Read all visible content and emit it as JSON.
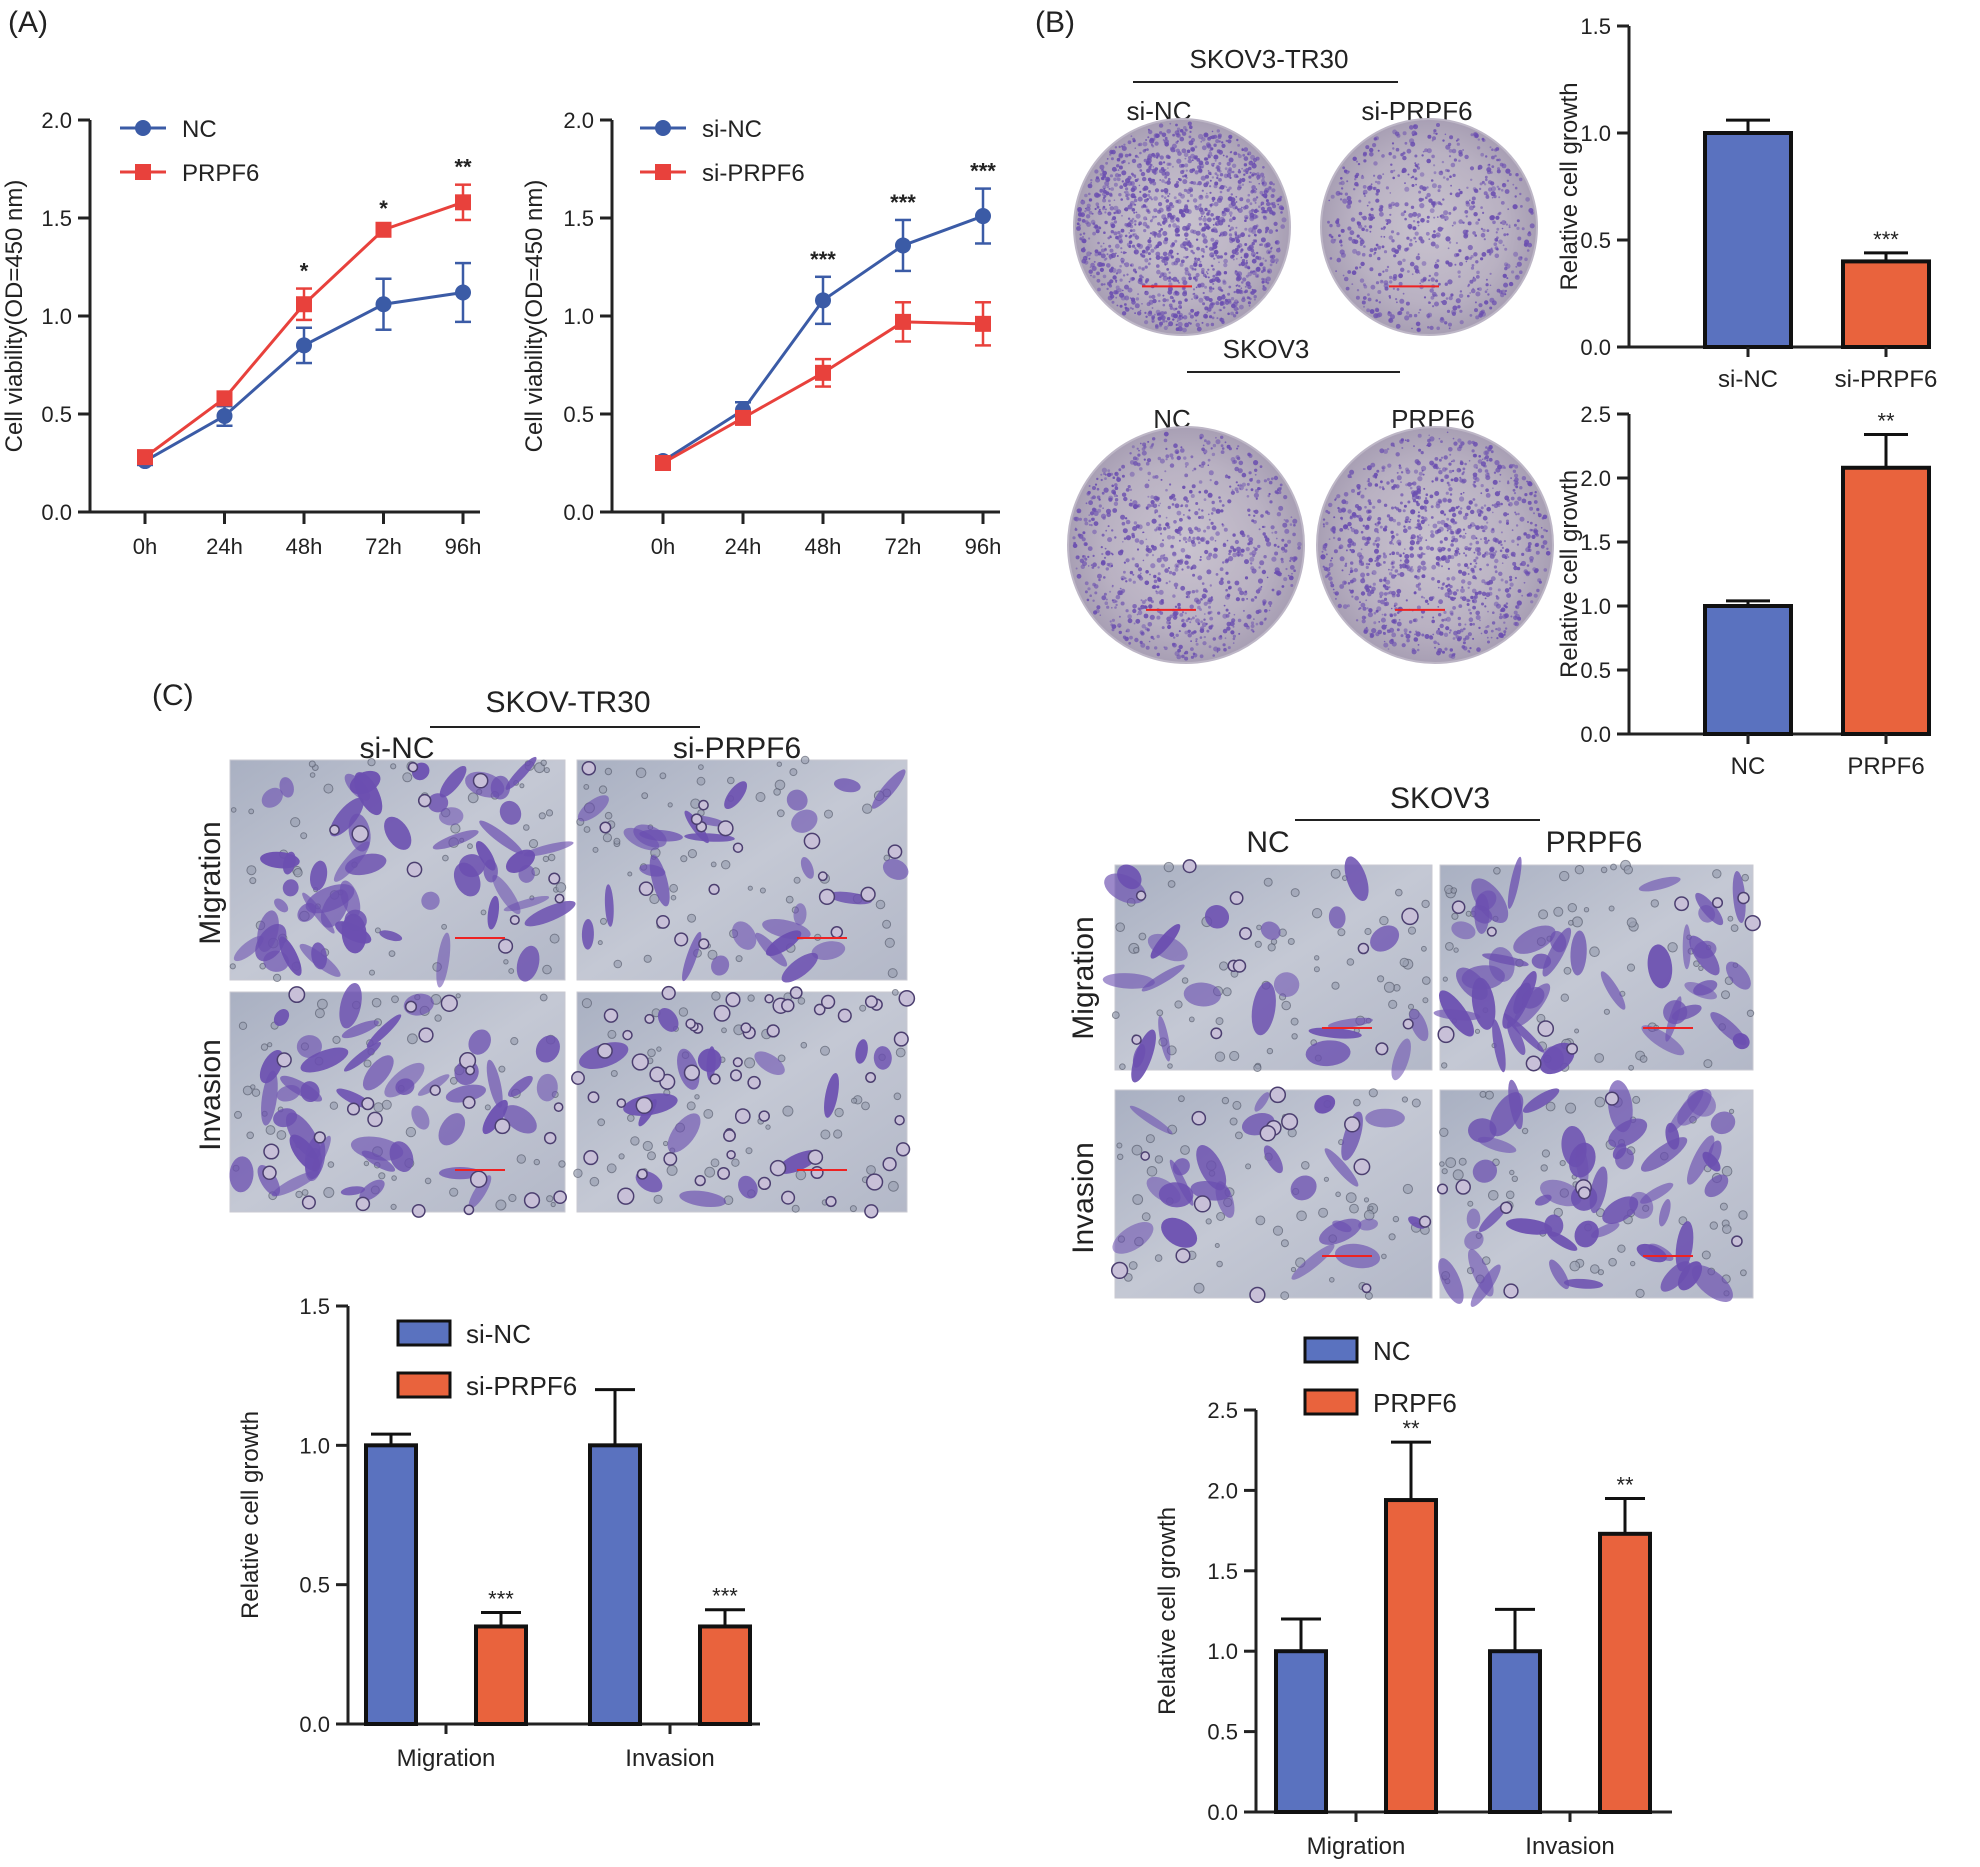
{
  "panels": {
    "A": "(A)",
    "B": "(B)",
    "C": "(C)"
  },
  "colors": {
    "blue": "#3b5ba6",
    "red": "#e8413c",
    "bar_blue": "#5a72bf",
    "bar_orange": "#e9633d",
    "stain": "#6b4fb0",
    "bg_field": "#b6bccb"
  },
  "panelB": {
    "dish_top_group": "SKOV3-TR30",
    "dish_top_labels": [
      "si-NC",
      "si-PRPF6"
    ],
    "dish_bottom_group": "SKOV3",
    "dish_bottom_labels": [
      "NC",
      "PRPF6"
    ]
  },
  "panelC": {
    "left_group": "SKOV-TR30",
    "left_cols": [
      "si-NC",
      "si-PRPF6"
    ],
    "right_group": "SKOV3",
    "right_cols": [
      "NC",
      "PRPF6"
    ],
    "rows": [
      "Migration",
      "Invasion"
    ]
  },
  "chart_data": [
    {
      "type": "line",
      "id": "A1",
      "title": "",
      "xlabel": "",
      "ylabel": "Cell viability(OD=450 nm)",
      "categories": [
        "0h",
        "24h",
        "48h",
        "72h",
        "96h"
      ],
      "ylim": [
        0,
        2.0
      ],
      "yticks": [
        "0.0",
        "0.5",
        "1.0",
        "1.5",
        "2.0"
      ],
      "series": [
        {
          "name": "NC",
          "color": "#3b5ba6",
          "marker": "circle",
          "values": [
            0.26,
            0.49,
            0.85,
            1.06,
            1.12
          ],
          "err": [
            0.02,
            0.05,
            0.09,
            0.13,
            0.15
          ]
        },
        {
          "name": "PRPF6",
          "color": "#e8413c",
          "marker": "square",
          "values": [
            0.28,
            0.58,
            1.06,
            1.44,
            1.58
          ],
          "err": [
            0.02,
            0.03,
            0.08,
            0.02,
            0.09
          ]
        }
      ],
      "significance": [
        "",
        "",
        "*",
        "*",
        "**"
      ]
    },
    {
      "type": "line",
      "id": "A2",
      "title": "",
      "xlabel": "",
      "ylabel": "Cell viability(OD=450 nm)",
      "categories": [
        "0h",
        "24h",
        "48h",
        "72h",
        "96h"
      ],
      "ylim": [
        0,
        2.0
      ],
      "yticks": [
        "0.0",
        "0.5",
        "1.0",
        "1.5",
        "2.0"
      ],
      "series": [
        {
          "name": "si-NC",
          "color": "#3b5ba6",
          "marker": "circle",
          "values": [
            0.26,
            0.52,
            1.08,
            1.36,
            1.51
          ],
          "err": [
            0.02,
            0.04,
            0.12,
            0.13,
            0.14
          ]
        },
        {
          "name": "si-PRPF6",
          "color": "#e8413c",
          "marker": "square",
          "values": [
            0.25,
            0.48,
            0.71,
            0.97,
            0.96
          ],
          "err": [
            0.02,
            0.03,
            0.07,
            0.1,
            0.11
          ]
        }
      ],
      "significance": [
        "",
        "",
        "***",
        "***",
        "***"
      ]
    },
    {
      "type": "bar",
      "id": "B1",
      "ylabel": "Relative cell growth",
      "categories": [
        "si-NC",
        "si-PRPF6"
      ],
      "ylim": [
        0,
        1.5
      ],
      "yticks": [
        "0.0",
        "0.5",
        "1.0",
        "1.5"
      ],
      "values": [
        1.0,
        0.4
      ],
      "err": [
        0.06,
        0.04
      ],
      "colors": [
        "#5a72bf",
        "#e9633d"
      ],
      "significance": [
        "",
        "***"
      ]
    },
    {
      "type": "bar",
      "id": "B2",
      "ylabel": "Relative cell growth",
      "categories": [
        "NC",
        "PRPF6"
      ],
      "ylim": [
        0,
        2.5
      ],
      "yticks": [
        "0.0",
        "0.5",
        "1.0",
        "1.5",
        "2.0",
        "2.5"
      ],
      "values": [
        1.0,
        2.08
      ],
      "err": [
        0.04,
        0.26
      ],
      "colors": [
        "#5a72bf",
        "#e9633d"
      ],
      "significance": [
        "",
        "**"
      ]
    },
    {
      "type": "bar",
      "id": "C1",
      "ylabel": "Relative cell growth",
      "categories": [
        "Migration",
        "Invasion"
      ],
      "ylim": [
        0,
        1.5
      ],
      "yticks": [
        "0.0",
        "0.5",
        "1.0",
        "1.5"
      ],
      "series": [
        {
          "name": "si-NC",
          "color": "#5a72bf",
          "values": [
            1.0,
            1.0
          ],
          "err": [
            0.04,
            0.2
          ]
        },
        {
          "name": "si-PRPF6",
          "color": "#e9633d",
          "values": [
            0.35,
            0.35
          ],
          "err": [
            0.05,
            0.06
          ],
          "significance": [
            "***",
            "***"
          ]
        }
      ]
    },
    {
      "type": "bar",
      "id": "C2",
      "ylabel": "Relative cell growth",
      "categories": [
        "Migration",
        "Invasion"
      ],
      "ylim": [
        0,
        2.5
      ],
      "yticks": [
        "0.0",
        "0.5",
        "1.0",
        "1.5",
        "2.0",
        "2.5"
      ],
      "series": [
        {
          "name": "NC",
          "color": "#5a72bf",
          "values": [
            1.0,
            1.0
          ],
          "err": [
            0.2,
            0.26
          ]
        },
        {
          "name": "PRPF6",
          "color": "#e9633d",
          "values": [
            1.94,
            1.73
          ],
          "err": [
            0.36,
            0.22
          ],
          "significance": [
            "**",
            "**"
          ]
        }
      ]
    }
  ]
}
